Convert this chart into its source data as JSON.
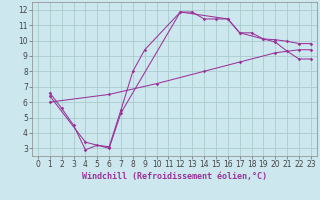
{
  "xlabel": "Windchill (Refroidissement éolien,°C)",
  "xlim": [
    -0.5,
    23.5
  ],
  "ylim": [
    2.5,
    12.5
  ],
  "xticks": [
    0,
    1,
    2,
    3,
    4,
    5,
    6,
    7,
    8,
    9,
    10,
    11,
    12,
    13,
    14,
    15,
    16,
    17,
    18,
    19,
    20,
    21,
    22,
    23
  ],
  "yticks": [
    3,
    4,
    5,
    6,
    7,
    8,
    9,
    10,
    11,
    12
  ],
  "bg_color": "#cce8ee",
  "line_color": "#993399",
  "grid_color": "#aacccc",
  "line1_x": [
    1,
    2,
    3,
    4,
    5,
    6,
    7,
    8,
    9,
    12,
    13,
    14,
    15,
    16,
    17,
    18,
    19,
    20,
    21,
    22,
    23
  ],
  "line1_y": [
    6.6,
    5.6,
    4.5,
    2.9,
    3.2,
    3.1,
    5.5,
    8.0,
    9.4,
    11.85,
    11.85,
    11.4,
    11.4,
    11.4,
    10.5,
    10.5,
    10.1,
    9.9,
    9.3,
    8.8,
    8.8
  ],
  "line2_x": [
    1,
    4,
    6,
    7,
    12,
    16,
    17,
    19,
    20,
    21,
    22,
    23
  ],
  "line2_y": [
    6.4,
    3.4,
    3.0,
    5.3,
    11.85,
    11.4,
    10.5,
    10.1,
    10.05,
    9.95,
    9.8,
    9.8
  ],
  "line3_x": [
    1,
    6,
    10,
    14,
    17,
    20,
    22,
    23
  ],
  "line3_y": [
    6.0,
    6.5,
    7.2,
    8.0,
    8.6,
    9.2,
    9.4,
    9.4
  ],
  "tick_fontsize": 5.5,
  "label_fontsize": 6.0
}
